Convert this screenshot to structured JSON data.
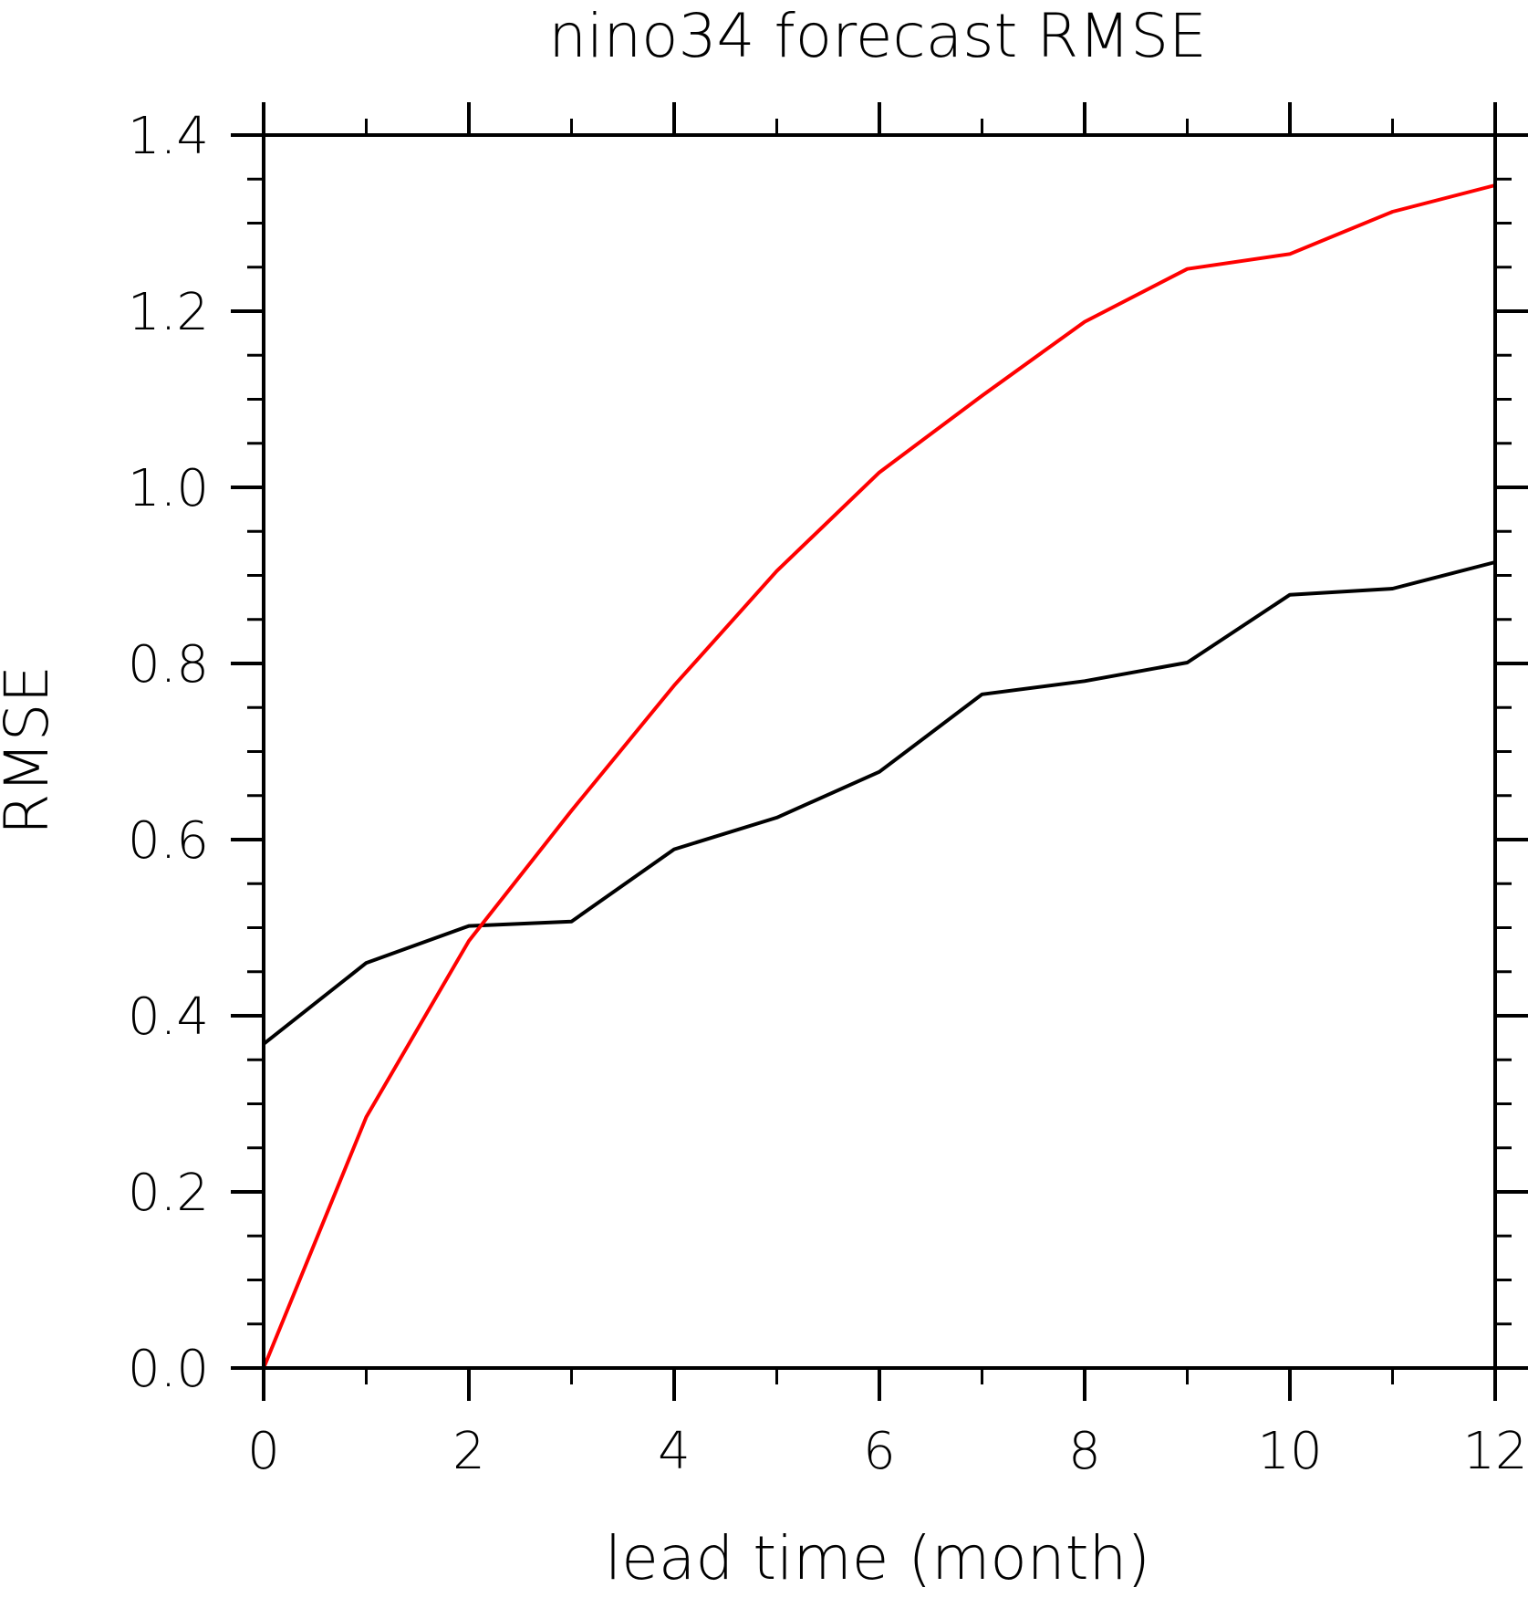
{
  "chart_data": {
    "type": "line",
    "title": "nino34 forecast RMSE",
    "xlabel": "lead time (month)",
    "ylabel": "RMSE",
    "xlim": [
      0,
      12
    ],
    "ylim": [
      0,
      1.4
    ],
    "x_ticks": [
      0,
      2,
      4,
      6,
      8,
      10,
      12
    ],
    "x_tick_labels": [
      "0",
      "2",
      "4",
      "6",
      "8",
      "10",
      "12"
    ],
    "y_ticks": [
      0,
      0.2,
      0.4,
      0.6,
      0.8,
      1.0,
      1.2,
      1.4
    ],
    "y_tick_labels": [
      "0.0",
      "0.2",
      "0.4",
      "0.6",
      "0.8",
      "1.0",
      "1.2",
      "1.4"
    ],
    "x_minor_step": 1,
    "y_minor_step": 0.05,
    "grid": false,
    "legend": "none",
    "x": [
      0,
      1,
      2,
      3,
      4,
      5,
      6,
      7,
      8,
      9,
      10,
      11,
      12
    ],
    "series": [
      {
        "color": "#000000",
        "values": [
          0.368,
          0.46,
          0.502,
          0.507,
          0.589,
          0.625,
          0.677,
          0.765,
          0.78,
          0.801,
          0.878,
          0.885,
          0.915
        ]
      },
      {
        "color": "#ff0000",
        "values": [
          0.0,
          0.285,
          0.485,
          0.633,
          0.775,
          0.905,
          1.017,
          1.104,
          1.188,
          1.248,
          1.265,
          1.313,
          1.343
        ]
      }
    ]
  }
}
